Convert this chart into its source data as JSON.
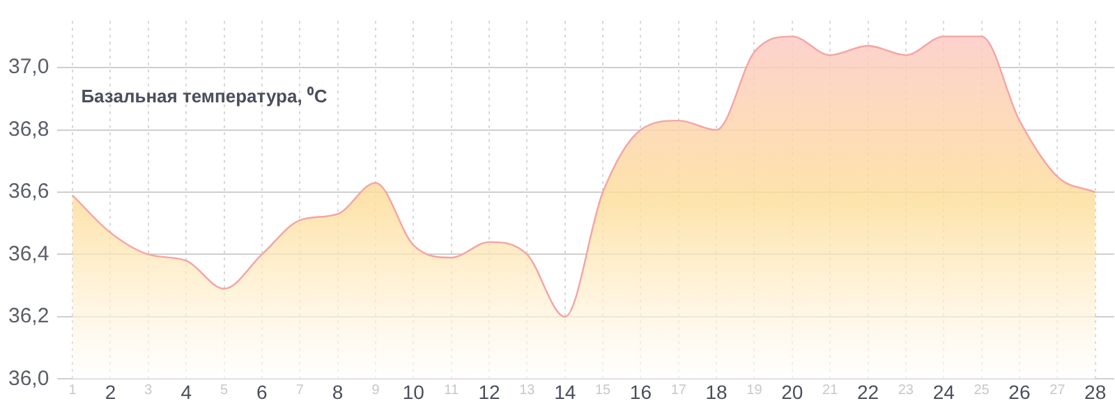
{
  "chart_data": {
    "type": "area",
    "title": "Базальная температура, ⁰C",
    "x": [
      1,
      2,
      3,
      4,
      5,
      6,
      7,
      8,
      9,
      10,
      11,
      12,
      13,
      14,
      15,
      16,
      17,
      18,
      19,
      20,
      21,
      22,
      23,
      24,
      25,
      26,
      27,
      28
    ],
    "series": [
      {
        "color": "#f5a3a3",
        "values": [
          36.59,
          36.47,
          36.4,
          36.38,
          36.29,
          36.4,
          36.51,
          36.53,
          36.63,
          36.43,
          36.39,
          36.44,
          36.4,
          36.2,
          36.6,
          36.8,
          36.83,
          36.8,
          37.05,
          37.1,
          37.04,
          37.07,
          37.04,
          37.1,
          37.1,
          36.83,
          36.65,
          36.6
        ]
      }
    ],
    "xlim": [
      0.6,
      28.5
    ],
    "xticks": [
      1,
      2,
      3,
      4,
      5,
      6,
      7,
      8,
      9,
      10,
      11,
      12,
      13,
      14,
      15,
      16,
      17,
      18,
      19,
      20,
      21,
      22,
      23,
      24,
      25,
      26,
      27,
      28
    ],
    "ylim": [
      36,
      37.15
    ],
    "yticks": [
      {
        "value": 36,
        "label": "36,0"
      },
      {
        "value": 36.2,
        "label": "36,2"
      },
      {
        "value": 36.4,
        "label": "36,4"
      },
      {
        "value": 36.6,
        "label": "36,6"
      },
      {
        "value": 36.8,
        "label": "36,8"
      },
      {
        "value": 37,
        "label": "37,0"
      }
    ],
    "grid": true,
    "legend": false,
    "marker": "none"
  }
}
